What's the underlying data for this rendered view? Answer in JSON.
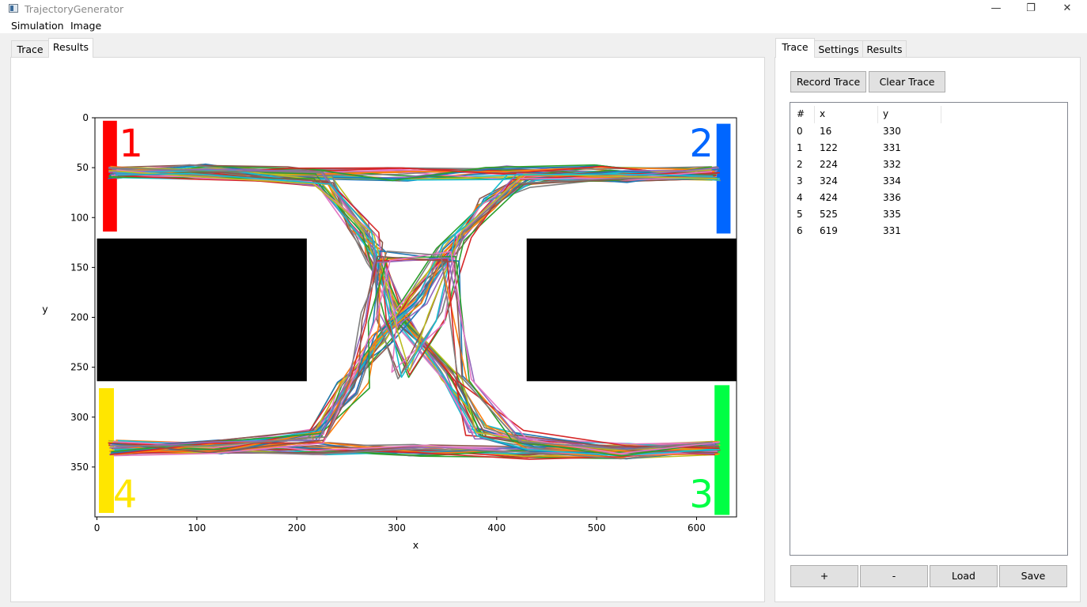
{
  "window": {
    "title": "TrajectoryGenerator"
  },
  "menu": [
    "Simulation",
    "Image"
  ],
  "left_tabs": [
    "Trace",
    "Results"
  ],
  "right_tabs": [
    "Trace",
    "Settings",
    "Results"
  ],
  "buttons": {
    "record": "Record Trace",
    "clear": "Clear Trace",
    "plus": "+",
    "minus": "-",
    "load": "Load",
    "save": "Save"
  },
  "table": {
    "headers": [
      "#",
      "x",
      "y"
    ],
    "rows": [
      [
        "0",
        "16",
        "330"
      ],
      [
        "1",
        "122",
        "331"
      ],
      [
        "2",
        "224",
        "332"
      ],
      [
        "3",
        "324",
        "334"
      ],
      [
        "4",
        "424",
        "336"
      ],
      [
        "5",
        "525",
        "335"
      ],
      [
        "6",
        "619",
        "331"
      ]
    ]
  },
  "chart_data": {
    "type": "line",
    "xlabel": "x",
    "ylabel": "y",
    "xlim": [
      -2,
      640
    ],
    "ylim": [
      400,
      0
    ],
    "y_inverted": true,
    "xticks": [
      0,
      100,
      200,
      300,
      400,
      500,
      600
    ],
    "yticks": [
      0,
      50,
      100,
      150,
      200,
      250,
      300,
      350
    ],
    "obstacles": [
      {
        "x": [
          0,
          210
        ],
        "y": [
          121,
          264
        ],
        "color": "#000000"
      },
      {
        "x": [
          430,
          640
        ],
        "y": [
          121,
          264
        ],
        "color": "#000000"
      }
    ],
    "zones": [
      {
        "label": "1",
        "color": "#ff0000",
        "x": [
          6,
          20
        ],
        "y": [
          3,
          114
        ]
      },
      {
        "label": "2",
        "color": "#0066ff",
        "x": [
          620,
          634
        ],
        "y": [
          6,
          116
        ]
      },
      {
        "label": "3",
        "color": "#00ff44",
        "x": [
          618,
          633
        ],
        "y": [
          268,
          398
        ]
      },
      {
        "label": "4",
        "color": "#ffe600",
        "x": [
          2,
          17
        ],
        "y": [
          271,
          396
        ]
      }
    ],
    "series_colors": [
      "#1f77b4",
      "#ff7f0e",
      "#2ca02c",
      "#d62728",
      "#9467bd",
      "#8c564b",
      "#e377c2",
      "#7f7f7f",
      "#bcbd22",
      "#17becf"
    ],
    "route_templates": [
      {
        "from": "1",
        "to": "2",
        "x": [
          16,
          100,
          200,
          300,
          400,
          500,
          619
        ],
        "y": [
          55,
          53,
          56,
          57,
          55,
          54,
          56
        ],
        "count": 24
      },
      {
        "from": "4",
        "to": "3",
        "x": [
          16,
          122,
          224,
          324,
          424,
          525,
          619
        ],
        "y": [
          330,
          331,
          332,
          334,
          336,
          335,
          331
        ],
        "count": 24
      },
      {
        "from": "1",
        "to": "3",
        "x": [
          16,
          120,
          228,
          262,
          280,
          300,
          355,
          380,
          440,
          530,
          619
        ],
        "y": [
          55,
          57,
          62,
          110,
          140,
          200,
          260,
          315,
          328,
          333,
          331
        ],
        "count": 22
      },
      {
        "from": "4",
        "to": "2",
        "x": [
          16,
          120,
          220,
          250,
          285,
          320,
          350,
          390,
          430,
          520,
          619
        ],
        "y": [
          331,
          330,
          318,
          272,
          220,
          180,
          130,
          85,
          63,
          58,
          56
        ],
        "count": 22
      },
      {
        "from": "1",
        "to": "2",
        "x": [
          16,
          100,
          225,
          275,
          290,
          305,
          340,
          370,
          420,
          520,
          619
        ],
        "y": [
          55,
          55,
          60,
          120,
          200,
          260,
          200,
          120,
          60,
          57,
          55
        ],
        "count": 8
      },
      {
        "from": "4",
        "to": "3",
        "x": [
          16,
          120,
          222,
          262,
          272,
          285,
          355,
          368,
          420,
          520,
          619
        ],
        "y": [
          332,
          330,
          320,
          265,
          200,
          140,
          140,
          260,
          320,
          333,
          331
        ],
        "count": 8
      }
    ]
  }
}
